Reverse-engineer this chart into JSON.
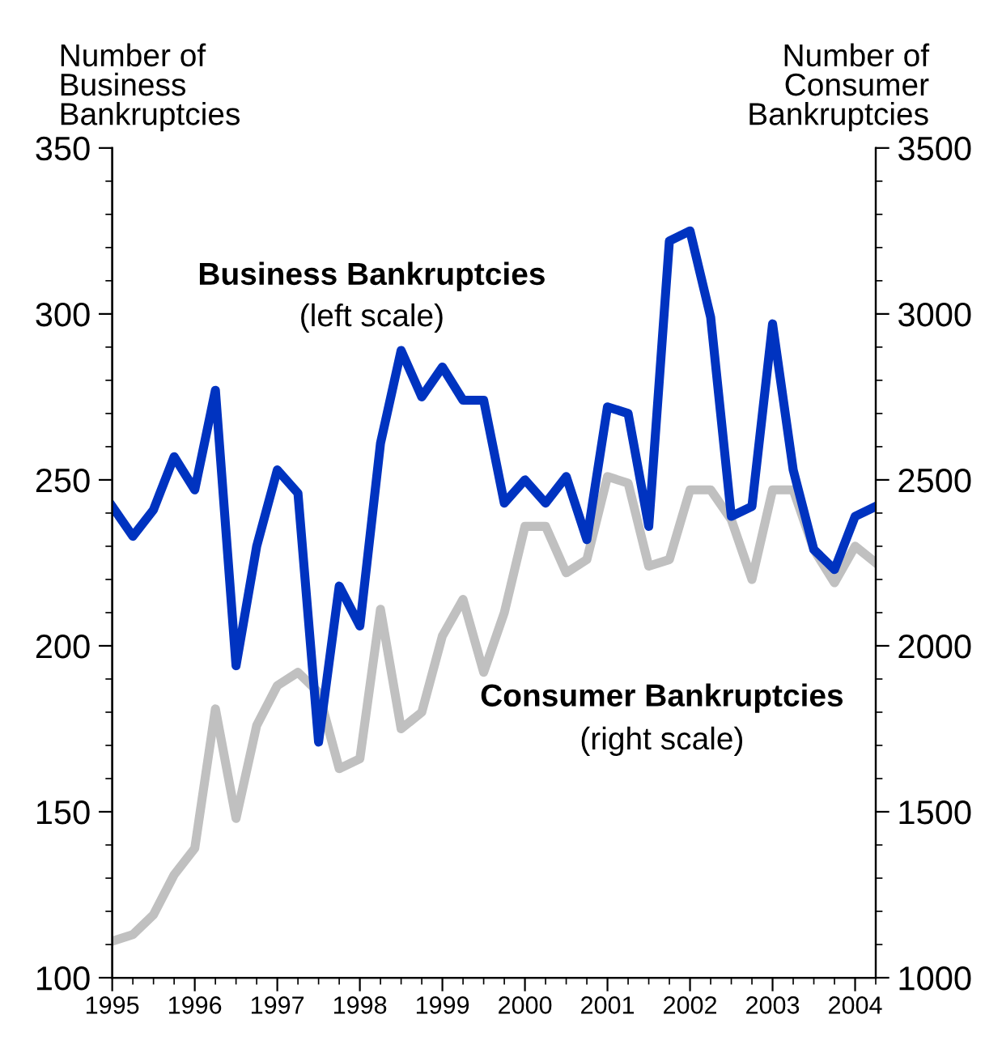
{
  "chart_data": {
    "type": "line",
    "ylabel": "Number of\nBusiness\nBankruptcies",
    "y2label": "Number of\nConsumer\nBankruptcies",
    "x": [
      1995,
      1995.25,
      1995.5,
      1995.75,
      1996,
      1996.25,
      1996.5,
      1996.75,
      1997,
      1997.25,
      1997.5,
      1997.75,
      1998,
      1998.25,
      1998.5,
      1998.75,
      1999,
      1999.25,
      1999.5,
      1999.75,
      2000,
      2000.25,
      2000.5,
      2000.75,
      2001,
      2001.25,
      2001.5,
      2001.75,
      2002,
      2002.25,
      2002.5,
      2002.75,
      2003,
      2003.25,
      2003.5,
      2003.75,
      2004,
      2004.25
    ],
    "series": [
      {
        "color": "#0033c0",
        "values": [
          242,
          233,
          241,
          257,
          247,
          277,
          194,
          230,
          253,
          246,
          171,
          218,
          206,
          261,
          289,
          275,
          284,
          274,
          274,
          243,
          250,
          243,
          251,
          232,
          272,
          270,
          236,
          322,
          325,
          299,
          239,
          242,
          297,
          253,
          229,
          223,
          239,
          242
        ]
      },
      {
        "color": "#c0c0c0",
        "axis": "y2",
        "values": [
          1110,
          1130,
          1190,
          1310,
          1390,
          1810,
          1480,
          1760,
          1880,
          1920,
          1860,
          1630,
          1660,
          2110,
          1750,
          1800,
          2030,
          2140,
          1920,
          2100,
          2360,
          2360,
          2220,
          2260,
          2510,
          2490,
          2240,
          2260,
          2470,
          2470,
          2380,
          2200,
          2470,
          2470,
          2290,
          2190,
          2300,
          2250
        ]
      }
    ],
    "annotations": [
      "Business Bankruptcies",
      "(left scale)",
      "Consumer Bankruptcies",
      "(right scale)"
    ],
    "xlim": [
      1995,
      2004.25
    ],
    "xticks": [
      1995,
      1996,
      1997,
      1998,
      1999,
      2000,
      2001,
      2002,
      2003,
      2004
    ],
    "ylim": [
      100,
      350
    ],
    "yticks": [
      100,
      150,
      200,
      250,
      300,
      350
    ],
    "y2lim": [
      1000,
      3500
    ],
    "y2ticks": [
      1000,
      1500,
      2000,
      2500,
      3000,
      3500
    ],
    "grid": false,
    "marker": "none",
    "line_style": "solid"
  }
}
